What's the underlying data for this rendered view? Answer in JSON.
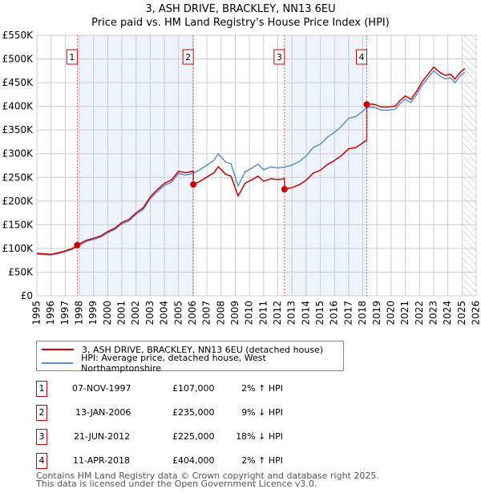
{
  "chart_data": {
    "type": "line",
    "title": "3, ASH DRIVE, BRACKLEY, NN13 6EU",
    "subtitle": "Price paid vs. HM Land Registry's House Price Index (HPI)",
    "xlim": [
      1995,
      2026
    ],
    "ylim": [
      0,
      550000
    ],
    "x_ticks": [
      "1995",
      "1996",
      "1997",
      "1998",
      "1999",
      "2000",
      "2001",
      "2002",
      "2003",
      "2004",
      "2005",
      "2006",
      "2007",
      "2008",
      "2009",
      "2010",
      "2011",
      "2012",
      "2013",
      "2014",
      "2015",
      "2016",
      "2017",
      "2018",
      "2019",
      "2020",
      "2021",
      "2022",
      "2023",
      "2024",
      "2025",
      "2026"
    ],
    "y_ticks": [
      "£0",
      "£50K",
      "£100K",
      "£150K",
      "£200K",
      "£250K",
      "£300K",
      "£350K",
      "£400K",
      "£450K",
      "£500K",
      "£550K"
    ],
    "grid": true,
    "colors": {
      "property": "#cc0000",
      "hpi": "#5b8fd0",
      "band": "#eef3fc"
    },
    "hpi": {
      "name": "HPI: Average price, detached house, West Northamptonshire",
      "x": [
        1995,
        1995.5,
        1996,
        1996.5,
        1997,
        1997.5,
        1997.85,
        1998.5,
        1999,
        1999.5,
        2000,
        2000.5,
        2001,
        2001.5,
        2002,
        2002.5,
        2003,
        2003.5,
        2004,
        2004.5,
        2005,
        2005.5,
        2006,
        2006.5,
        2007,
        2007.5,
        2007.8,
        2008.3,
        2008.7,
        2009.2,
        2009.7,
        2010.2,
        2010.6,
        2011,
        2011.5,
        2012,
        2012.5,
        2013,
        2013.5,
        2014,
        2014.5,
        2015,
        2015.5,
        2016,
        2016.5,
        2017,
        2017.5,
        2018,
        2018.3,
        2018.8,
        2019.3,
        2019.8,
        2020.3,
        2020.6,
        2021,
        2021.4,
        2021.8,
        2022.2,
        2022.6,
        2023,
        2023.4,
        2023.8,
        2024.2,
        2024.5,
        2024.9,
        2025.2
      ],
      "y": [
        88000,
        87000,
        86000,
        89000,
        93000,
        98000,
        105000,
        115000,
        119000,
        124000,
        133000,
        140000,
        152000,
        158000,
        172000,
        182000,
        205000,
        220000,
        233000,
        240000,
        258000,
        255000,
        258000,
        266000,
        276000,
        286000,
        300000,
        283000,
        278000,
        232000,
        262000,
        270000,
        278000,
        266000,
        272000,
        270000,
        272000,
        276000,
        283000,
        295000,
        313000,
        320000,
        335000,
        345000,
        358000,
        375000,
        378000,
        390000,
        398000,
        398000,
        392000,
        392000,
        394000,
        405000,
        415000,
        408000,
        425000,
        445000,
        460000,
        475000,
        465000,
        458000,
        460000,
        450000,
        465000,
        472000
      ]
    },
    "property": {
      "name": "3, ASH DRIVE, BRACKLEY, NN13 6EU (detached house)"
    },
    "sales": [
      {
        "n": "1",
        "x": 1997.85,
        "price": 107000
      },
      {
        "n": "2",
        "x": 2006.04,
        "price": 235000
      },
      {
        "n": "3",
        "x": 2012.47,
        "price": 225000
      },
      {
        "n": "4",
        "x": 2018.28,
        "price": 404000
      }
    ],
    "hatch_from": 2025.0
  },
  "legend": {
    "property": "3, ASH DRIVE, BRACKLEY, NN13 6EU (detached house)",
    "hpi": "HPI: Average price, detached house, West Northamptonshire"
  },
  "sales_table": [
    {
      "n": "1",
      "date": "07-NOV-1997",
      "price": "£107,000",
      "hpi": "2% ↑ HPI"
    },
    {
      "n": "2",
      "date": "13-JAN-2006",
      "price": "£235,000",
      "hpi": "9% ↓ HPI"
    },
    {
      "n": "3",
      "date": "21-JUN-2012",
      "price": "£225,000",
      "hpi": "18% ↓ HPI"
    },
    {
      "n": "4",
      "date": "11-APR-2018",
      "price": "£404,000",
      "hpi": "2% ↑ HPI"
    }
  ],
  "footer": {
    "line1": "Contains HM Land Registry data © Crown copyright and database right 2025.",
    "line2": "This data is licensed under the Open Government Licence v3.0."
  }
}
